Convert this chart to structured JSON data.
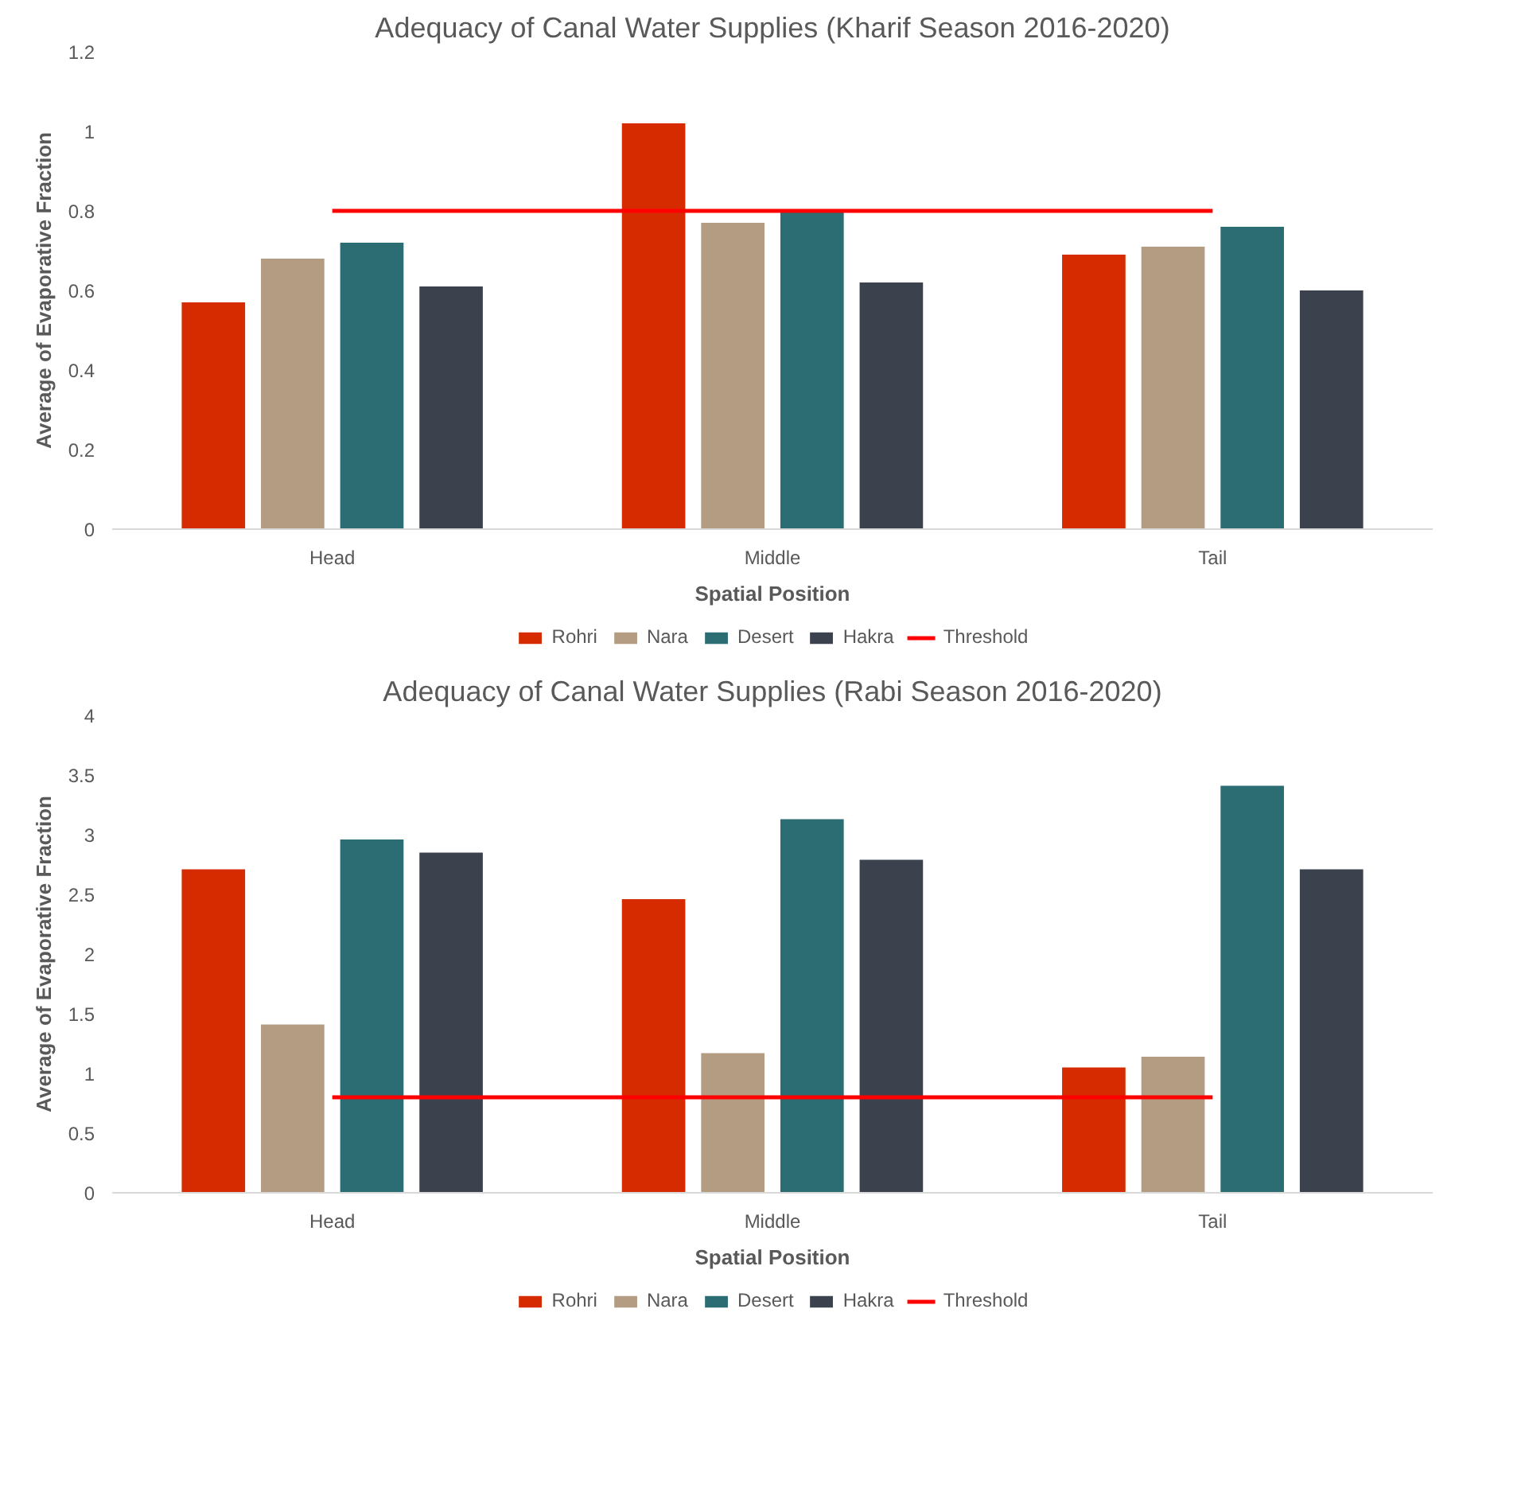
{
  "chart_data": [
    {
      "type": "bar",
      "title": "Adequacy of Canal Water Supplies (Kharif Season 2016-2020)",
      "xlabel": "Spatial Position",
      "ylabel": "Average of Evaporative Fraction",
      "categories": [
        "Head",
        "Middle",
        "Tail"
      ],
      "ylim": [
        0,
        1.2
      ],
      "yticks": [
        0,
        0.2,
        0.4,
        0.6,
        0.8,
        1,
        1.2
      ],
      "grid": false,
      "legend": "bottom",
      "series": [
        {
          "name": "Rohri",
          "color": "#d62a00",
          "values": [
            0.57,
            1.02,
            0.69
          ]
        },
        {
          "name": "Nara",
          "color": "#b49c83",
          "values": [
            0.68,
            0.77,
            0.71
          ]
        },
        {
          "name": "Desert",
          "color": "#2b6d73",
          "values": [
            0.72,
            0.8,
            0.76
          ]
        },
        {
          "name": "Hakra",
          "color": "#3b414d",
          "values": [
            0.61,
            0.62,
            0.6
          ]
        },
        {
          "name": "Threshold",
          "type": "line",
          "color": "#ff0000",
          "values": [
            0.8,
            0.8,
            0.8
          ]
        }
      ]
    },
    {
      "type": "bar",
      "title": "Adequacy of Canal Water Supplies (Rabi Season 2016-2020)",
      "xlabel": "Spatial Position",
      "ylabel": "Average of Evaporative Fraction",
      "categories": [
        "Head",
        "Middle",
        "Tail"
      ],
      "ylim": [
        0,
        4
      ],
      "yticks": [
        0,
        0.5,
        1,
        1.5,
        2,
        2.5,
        3,
        3.5,
        4
      ],
      "grid": false,
      "legend": "bottom",
      "series": [
        {
          "name": "Rohri",
          "color": "#d62a00",
          "values": [
            2.71,
            2.46,
            1.05
          ]
        },
        {
          "name": "Nara",
          "color": "#b49c83",
          "values": [
            1.41,
            1.17,
            1.14
          ]
        },
        {
          "name": "Desert",
          "color": "#2b6d73",
          "values": [
            2.96,
            3.13,
            3.41
          ]
        },
        {
          "name": "Hakra",
          "color": "#3b414d",
          "values": [
            2.85,
            2.79,
            2.71
          ]
        },
        {
          "name": "Threshold",
          "type": "line",
          "color": "#ff0000",
          "values": [
            0.8,
            0.8,
            0.8
          ]
        }
      ]
    }
  ]
}
